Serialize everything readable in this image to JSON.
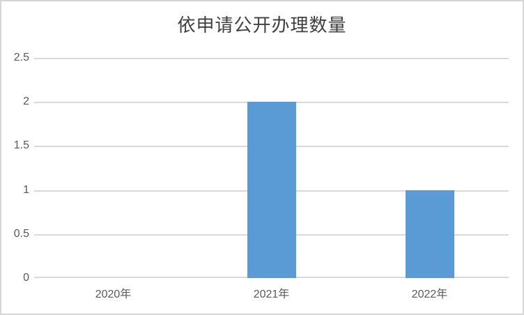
{
  "chart_data": {
    "type": "bar",
    "title": "依申请公开办理数量",
    "categories": [
      "2020年",
      "2021年",
      "2022年"
    ],
    "values": [
      0,
      2,
      1
    ],
    "xlabel": "",
    "ylabel": "",
    "ylim": [
      0,
      2.5
    ],
    "yticks": [
      0,
      0.5,
      1,
      1.5,
      2,
      2.5
    ],
    "ytick_labels": [
      "0",
      "0.5",
      "1",
      "1.5",
      "2",
      "2.5"
    ],
    "grid": true,
    "legend": false,
    "bar_color": "#5B9BD5"
  },
  "colors": {
    "bar": "#5B9BD5",
    "gridline": "#D9D9D9",
    "axis-text": "#595959",
    "title-text": "#404040",
    "border": "#D6D6D6",
    "background": "#FFFFFF"
  }
}
